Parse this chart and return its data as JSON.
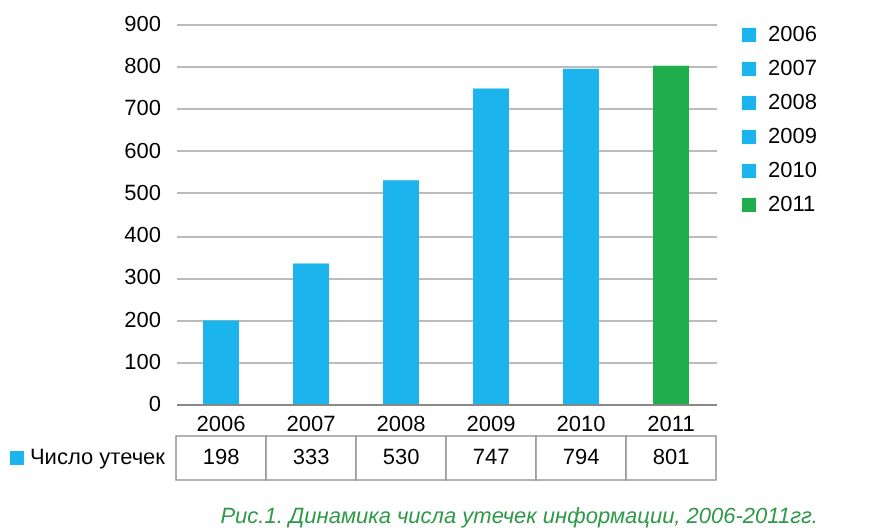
{
  "chart_data": {
    "type": "bar",
    "categories": [
      "2006",
      "2007",
      "2008",
      "2009",
      "2010",
      "2011"
    ],
    "series": [
      {
        "name": "Число утечек",
        "values": [
          198,
          333,
          530,
          747,
          794,
          801
        ]
      }
    ],
    "colors": [
      "#1cb4ec",
      "#1cb4ec",
      "#1cb4ec",
      "#1cb4ec",
      "#1cb4ec",
      "#1fae4b"
    ],
    "ylim": [
      0,
      900
    ],
    "yticks": [
      0,
      100,
      200,
      300,
      400,
      500,
      600,
      700,
      800,
      900
    ],
    "grid": "y",
    "legend": "bottom left",
    "data_labels": true,
    "annotations": [
      "Рис.1. Динамика числа утечек информации, 2006-2011гг."
    ]
  }
}
